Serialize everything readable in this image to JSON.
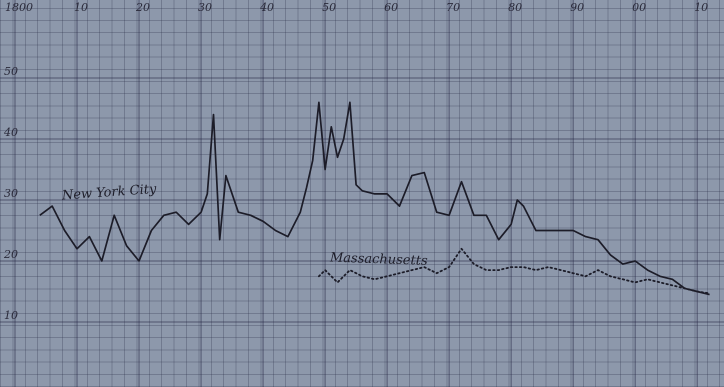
{
  "chart_data": {
    "type": "line",
    "xlim": [
      1800,
      1914
    ],
    "ylim": [
      0,
      60
    ],
    "xticks": [
      1800,
      {
        "value": 1810,
        "label": "10"
      },
      {
        "value": 1820,
        "label": "20"
      },
      {
        "value": 1830,
        "label": "30"
      },
      {
        "value": 1840,
        "label": "40"
      },
      {
        "value": 1850,
        "label": "50"
      },
      {
        "value": 1860,
        "label": "60"
      },
      {
        "value": 1870,
        "label": "70"
      },
      {
        "value": 1880,
        "label": "80"
      },
      {
        "value": 1890,
        "label": "90"
      },
      {
        "value": 1900,
        "label": "00"
      },
      {
        "value": 1910,
        "label": "10"
      }
    ],
    "yticks": [
      10,
      20,
      30,
      40,
      50
    ],
    "grid": true,
    "series": [
      {
        "name": "New York City",
        "color": "#1c1c28",
        "style": "solid",
        "x": [
          1804,
          1806,
          1808,
          1810,
          1812,
          1814,
          1816,
          1818,
          1820,
          1822,
          1824,
          1826,
          1828,
          1830,
          1831,
          1832,
          1833,
          1834,
          1836,
          1838,
          1840,
          1842,
          1844,
          1846,
          1847,
          1848,
          1849,
          1850,
          1851,
          1852,
          1853,
          1854,
          1855,
          1856,
          1858,
          1860,
          1862,
          1864,
          1866,
          1868,
          1870,
          1872,
          1874,
          1876,
          1878,
          1880,
          1881,
          1882,
          1884,
          1886,
          1888,
          1890,
          1892,
          1894,
          1896,
          1898,
          1900,
          1902,
          1904,
          1906,
          1908,
          1910,
          1912
        ],
        "values": [
          27.5,
          29,
          25,
          22,
          24,
          20,
          27.5,
          22.5,
          20,
          25,
          27.5,
          28,
          26,
          28,
          31,
          44,
          23.5,
          34,
          28,
          27.5,
          26.5,
          25,
          24,
          28,
          32,
          36.5,
          46,
          35,
          42,
          37,
          40,
          46,
          32.5,
          31.5,
          31,
          31,
          29,
          34,
          34.5,
          28,
          27.5,
          33,
          27.5,
          27.5,
          23.5,
          26,
          30,
          29,
          25,
          25,
          25,
          25,
          24,
          23.5,
          21,
          19.5,
          20,
          18.5,
          17.5,
          17,
          15.5,
          15,
          14.5
        ]
      },
      {
        "name": "Massachusetts",
        "color": "#1c1c28",
        "style": "dotted",
        "x": [
          1849,
          1850,
          1852,
          1854,
          1856,
          1858,
          1860,
          1862,
          1864,
          1866,
          1868,
          1870,
          1872,
          1874,
          1876,
          1878,
          1880,
          1882,
          1884,
          1886,
          1888,
          1890,
          1892,
          1894,
          1896,
          1898,
          1900,
          1902,
          1904,
          1906,
          1908,
          1910,
          1912
        ],
        "values": [
          17.5,
          18.5,
          16.5,
          18.5,
          17.5,
          17,
          17.5,
          18,
          18.5,
          19,
          18,
          19,
          22,
          19.5,
          18.5,
          18.5,
          19,
          19,
          18.5,
          19,
          18.5,
          18,
          17.5,
          18.5,
          17.5,
          17,
          16.5,
          17,
          16.5,
          16,
          15.5,
          15,
          14.7
        ]
      }
    ]
  }
}
